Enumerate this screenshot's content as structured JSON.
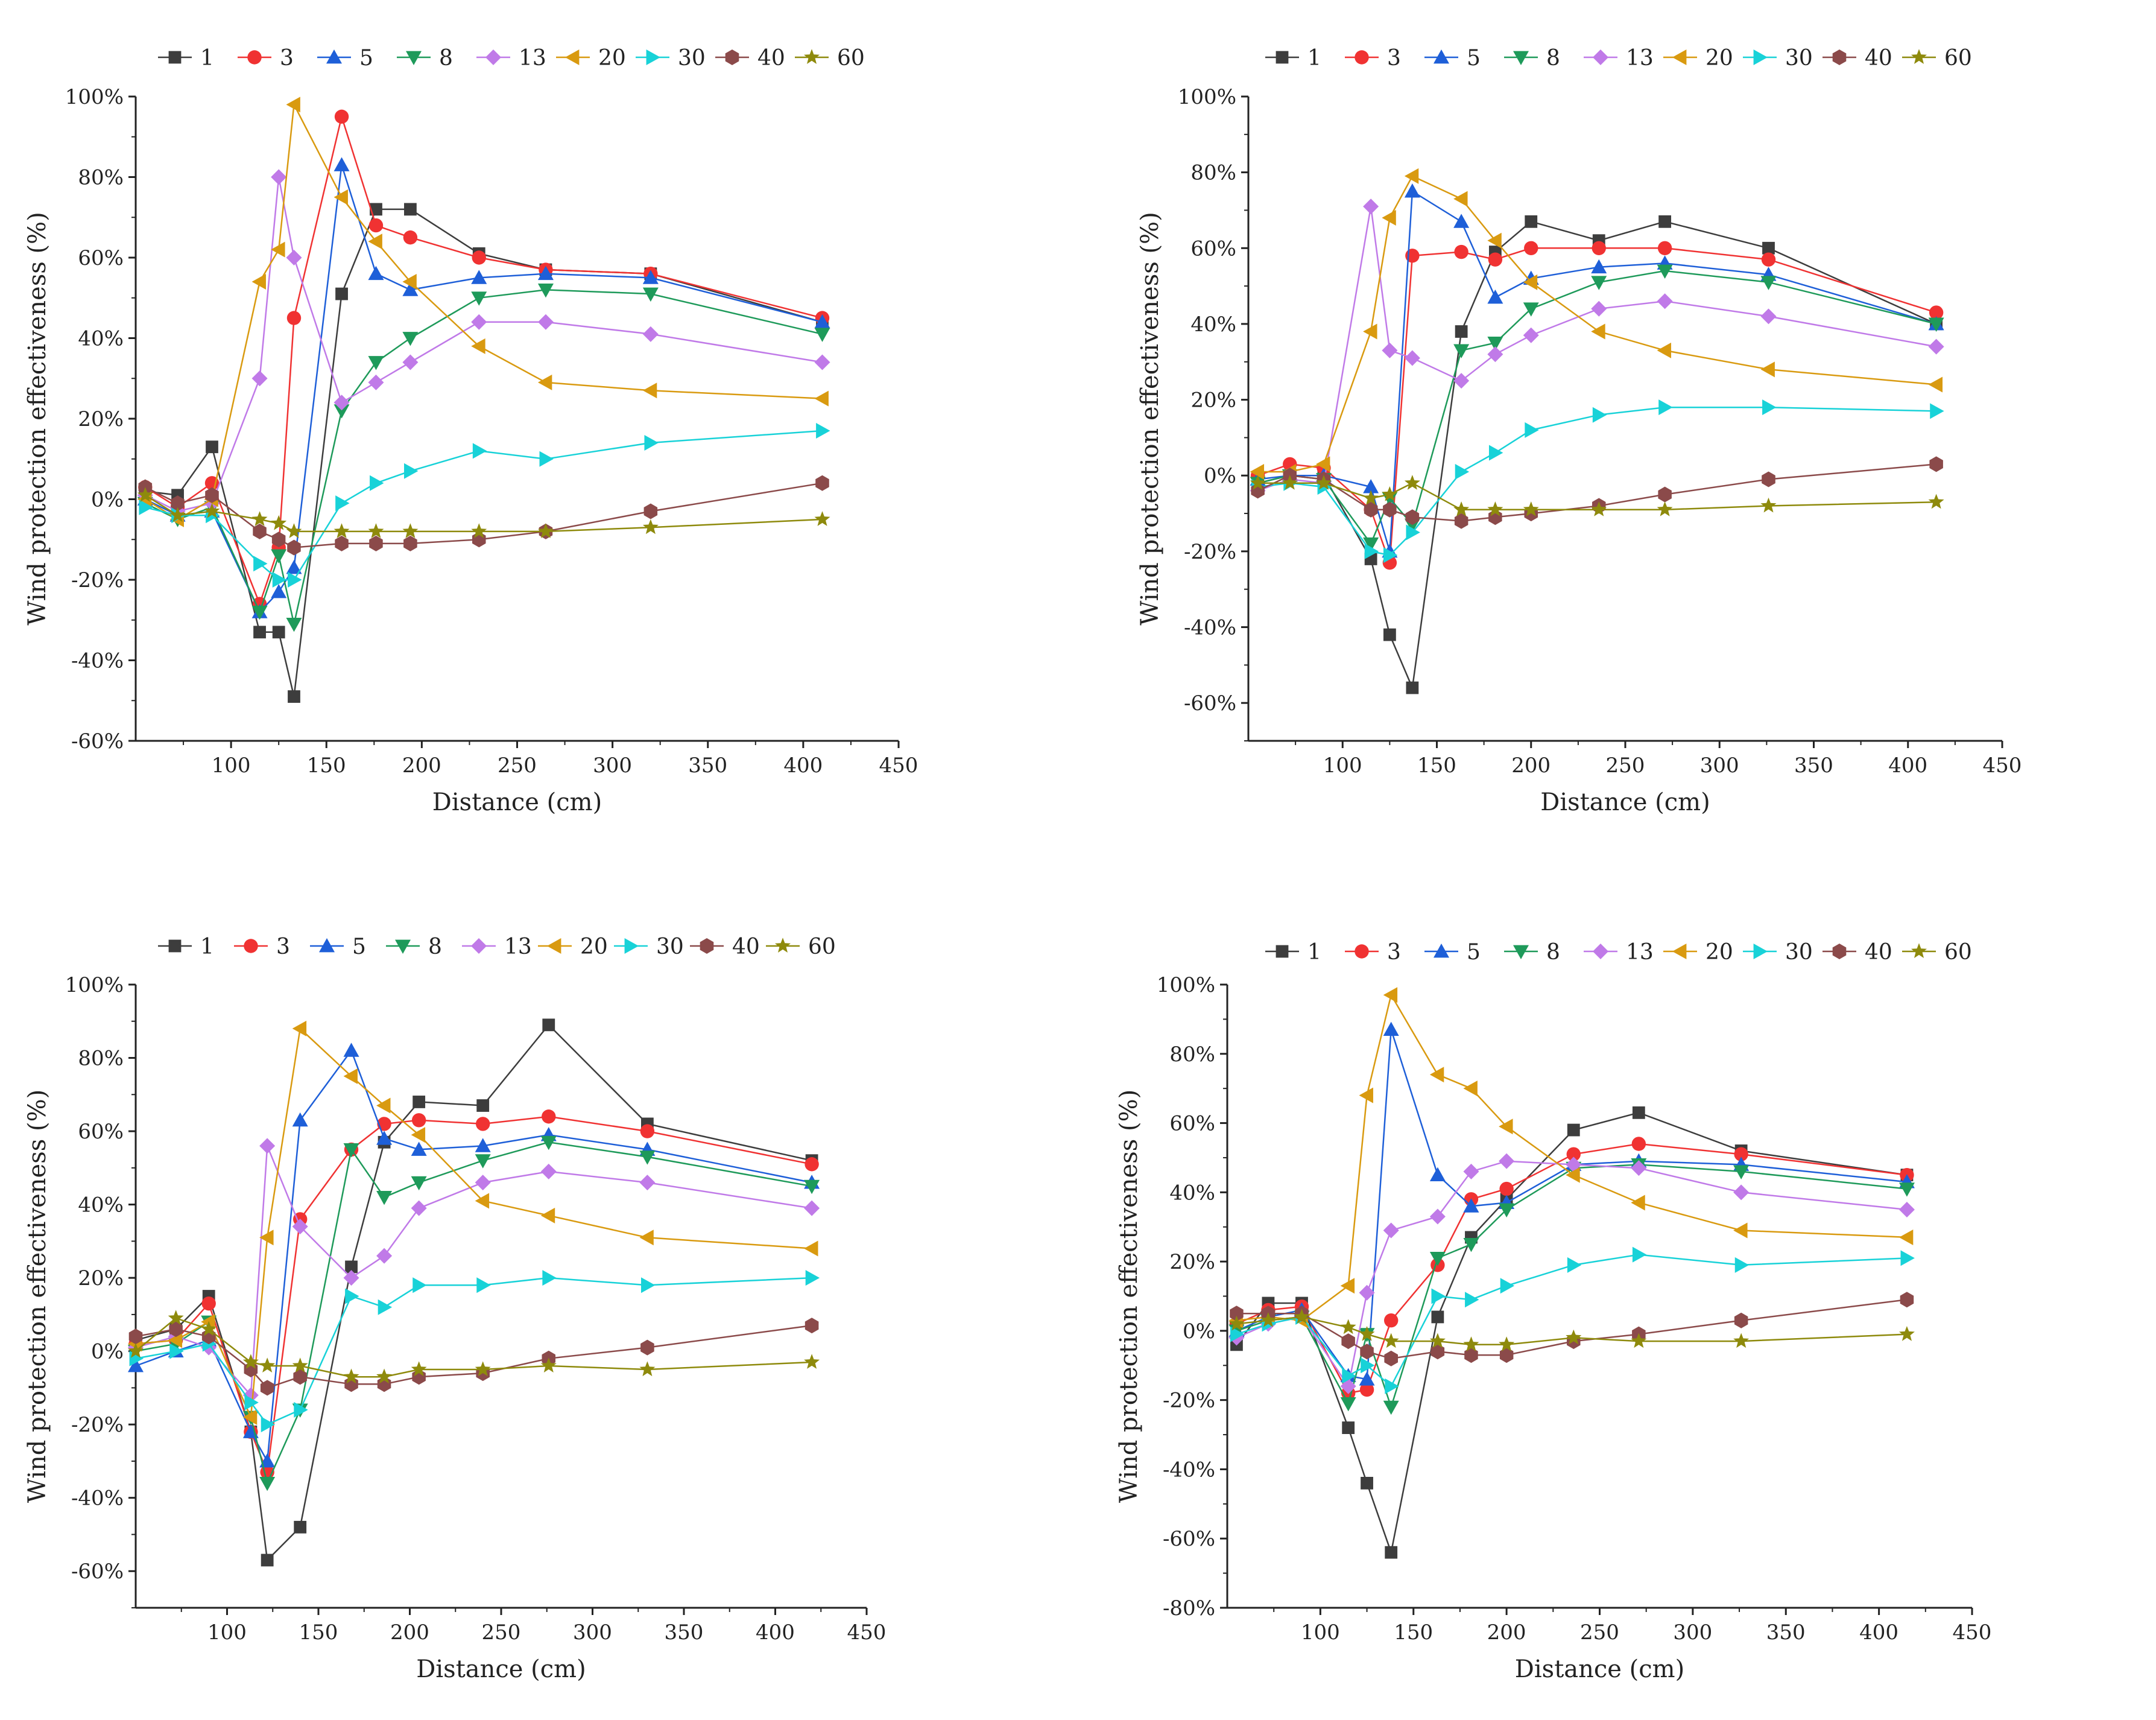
{
  "colors": {
    "1": "#3d3d3d",
    "3": "#f03232",
    "5": "#1e5fd8",
    "8": "#1e9a5a",
    "13": "#c07ae8",
    "20": "#d99a10",
    "30": "#18d2d8",
    "40": "#8b4a4a",
    "60": "#8e8a0c"
  },
  "chart_data": [
    {
      "type": "line",
      "xlabel": "Distance (cm)",
      "ylabel": "Wind protection effectiveness (%)",
      "xlim": [
        50,
        450
      ],
      "ylim": [
        -60,
        100
      ],
      "x_ticks": [
        "100",
        "150",
        "200",
        "250",
        "300",
        "350",
        "400",
        "450"
      ],
      "y_ticks": [
        "-60%",
        "-40%",
        "-20%",
        "0%",
        "20%",
        "40%",
        "60%",
        "80%",
        "100%"
      ],
      "x": [
        55,
        72,
        90,
        115,
        125,
        133,
        158,
        176,
        194,
        230,
        265,
        320,
        410
      ],
      "legend": "top",
      "series": [
        {
          "name": "1",
          "marker": "square",
          "values": [
            2,
            1,
            13,
            -33,
            -33,
            -49,
            51,
            72,
            72,
            61,
            57,
            56,
            44
          ]
        },
        {
          "name": "3",
          "marker": "circle",
          "values": [
            3,
            -2,
            4,
            -26,
            -12,
            45,
            95,
            68,
            65,
            60,
            57,
            56,
            45
          ]
        },
        {
          "name": "5",
          "marker": "triangle",
          "values": [
            0,
            -4,
            -3,
            -28,
            -23,
            -17,
            83,
            56,
            52,
            55,
            56,
            55,
            44
          ]
        },
        {
          "name": "8",
          "marker": "tri-down",
          "values": [
            -1,
            -5,
            -2,
            -28,
            -14,
            -31,
            22,
            34,
            40,
            50,
            52,
            51,
            41
          ]
        },
        {
          "name": "13",
          "marker": "diamond",
          "values": [
            1,
            -3,
            -1,
            30,
            80,
            60,
            24,
            29,
            34,
            44,
            44,
            41,
            34
          ]
        },
        {
          "name": "20",
          "marker": "tri-left",
          "values": [
            0,
            -5,
            0,
            54,
            62,
            98,
            75,
            64,
            54,
            38,
            29,
            27,
            25
          ]
        },
        {
          "name": "30",
          "marker": "tri-right",
          "values": [
            -2,
            -4,
            -4,
            -16,
            -20,
            -20,
            -1,
            4,
            7,
            12,
            10,
            14,
            17
          ]
        },
        {
          "name": "40",
          "marker": "hexagon",
          "values": [
            3,
            -1,
            1,
            -8,
            -10,
            -12,
            -11,
            -11,
            -11,
            -10,
            -8,
            -3,
            4
          ]
        },
        {
          "name": "60",
          "marker": "star",
          "values": [
            1,
            -4,
            -3,
            -5,
            -6,
            -8,
            -8,
            -8,
            -8,
            -8,
            -8,
            -7,
            -5
          ]
        }
      ]
    },
    {
      "type": "line",
      "xlabel": "Distance (cm)",
      "ylabel": "Wind protection effectiveness (%)",
      "xlim": [
        50,
        450
      ],
      "ylim": [
        -70,
        100
      ],
      "x_ticks": [
        "100",
        "150",
        "200",
        "250",
        "300",
        "350",
        "400",
        "450"
      ],
      "y_ticks": [
        "-60%",
        "-40%",
        "-20%",
        "0%",
        "20%",
        "40%",
        "60%",
        "80%",
        "100%"
      ],
      "x": [
        55,
        72,
        90,
        115,
        125,
        137,
        163,
        181,
        200,
        236,
        271,
        326,
        415
      ],
      "legend": "top",
      "series": [
        {
          "name": "1",
          "marker": "square",
          "values": [
            -2,
            0,
            0,
            -22,
            -42,
            -56,
            38,
            59,
            67,
            62,
            67,
            60,
            40
          ]
        },
        {
          "name": "3",
          "marker": "circle",
          "values": [
            0,
            3,
            2,
            -9,
            -23,
            58,
            59,
            57,
            60,
            60,
            60,
            57,
            43
          ]
        },
        {
          "name": "5",
          "marker": "triangle",
          "values": [
            -1,
            0,
            0,
            -3,
            -20,
            75,
            67,
            47,
            52,
            55,
            56,
            53,
            40
          ]
        },
        {
          "name": "8",
          "marker": "tri-down",
          "values": [
            -2,
            0,
            -1,
            -18,
            -6,
            -13,
            33,
            35,
            44,
            51,
            54,
            51,
            40
          ]
        },
        {
          "name": "13",
          "marker": "diamond",
          "values": [
            -4,
            -1,
            -2,
            71,
            33,
            31,
            25,
            32,
            37,
            44,
            46,
            42,
            34
          ]
        },
        {
          "name": "20",
          "marker": "tri-left",
          "values": [
            1,
            1,
            3,
            38,
            68,
            79,
            73,
            62,
            51,
            38,
            33,
            28,
            24
          ]
        },
        {
          "name": "30",
          "marker": "tri-right",
          "values": [
            -3,
            -2,
            -3,
            -20,
            -21,
            -15,
            1,
            6,
            12,
            16,
            18,
            18,
            17
          ]
        },
        {
          "name": "40",
          "marker": "hexagon",
          "values": [
            -4,
            0,
            -1,
            -9,
            -9,
            -11,
            -12,
            -11,
            -10,
            -8,
            -5,
            -1,
            3
          ]
        },
        {
          "name": "60",
          "marker": "star",
          "values": [
            -2,
            -2,
            -2,
            -6,
            -5,
            -2,
            -9,
            -9,
            -9,
            -9,
            -9,
            -8,
            -7
          ]
        }
      ]
    },
    {
      "type": "line",
      "xlabel": "Distance (cm)",
      "ylabel": "Wind protection effectiveness (%)",
      "xlim": [
        50,
        450
      ],
      "ylim": [
        -70,
        100
      ],
      "x_ticks": [
        "100",
        "150",
        "200",
        "250",
        "300",
        "350",
        "400",
        "450"
      ],
      "y_ticks": [
        "-60%",
        "-40%",
        "-20%",
        "0%",
        "20%",
        "40%",
        "60%",
        "80%",
        "100%"
      ],
      "x": [
        50,
        72,
        90,
        113,
        122,
        140,
        168,
        186,
        205,
        240,
        276,
        330,
        420
      ],
      "legend": "top",
      "series": [
        {
          "name": "1",
          "marker": "square",
          "values": [
            3,
            6,
            15,
            -22,
            -57,
            -48,
            23,
            57,
            68,
            67,
            89,
            62,
            52
          ]
        },
        {
          "name": "3",
          "marker": "circle",
          "values": [
            2,
            3,
            13,
            -22,
            -33,
            36,
            55,
            62,
            63,
            62,
            64,
            60,
            51
          ]
        },
        {
          "name": "5",
          "marker": "triangle",
          "values": [
            -4,
            0,
            3,
            -22,
            -30,
            63,
            82,
            58,
            55,
            56,
            59,
            55,
            46
          ]
        },
        {
          "name": "8",
          "marker": "tri-down",
          "values": [
            0,
            2,
            8,
            -18,
            -36,
            -16,
            55,
            42,
            46,
            52,
            57,
            53,
            45
          ]
        },
        {
          "name": "13",
          "marker": "diamond",
          "values": [
            1,
            4,
            1,
            -12,
            56,
            34,
            20,
            26,
            39,
            46,
            49,
            46,
            39
          ]
        },
        {
          "name": "20",
          "marker": "tri-left",
          "values": [
            2,
            3,
            8,
            -18,
            31,
            88,
            75,
            67,
            59,
            41,
            37,
            31,
            28
          ]
        },
        {
          "name": "30",
          "marker": "tri-right",
          "values": [
            -2,
            0,
            2,
            -14,
            -20,
            -16,
            15,
            12,
            18,
            18,
            20,
            18,
            20
          ]
        },
        {
          "name": "40",
          "marker": "hexagon",
          "values": [
            4,
            6,
            4,
            -5,
            -10,
            -7,
            -9,
            -9,
            -7,
            -6,
            -2,
            1,
            7
          ]
        },
        {
          "name": "60",
          "marker": "star",
          "values": [
            0,
            9,
            6,
            -3,
            -4,
            -4,
            -7,
            -7,
            -5,
            -5,
            -4,
            -5,
            -3
          ]
        }
      ]
    },
    {
      "type": "line",
      "xlabel": "Distance (cm)",
      "ylabel": "Wind protection effectiveness (%)",
      "xlim": [
        50,
        450
      ],
      "ylim": [
        -80,
        100
      ],
      "x_ticks": [
        "100",
        "150",
        "200",
        "250",
        "300",
        "350",
        "400",
        "450"
      ],
      "y_ticks": [
        "-80%",
        "-60%",
        "-40%",
        "-20%",
        "0%",
        "20%",
        "40%",
        "60%",
        "80%",
        "100%"
      ],
      "x": [
        55,
        72,
        90,
        115,
        125,
        138,
        163,
        181,
        200,
        236,
        271,
        326,
        415
      ],
      "legend": "top",
      "series": [
        {
          "name": "1",
          "marker": "square",
          "values": [
            -4,
            8,
            8,
            -28,
            -44,
            -64,
            4,
            27,
            38,
            58,
            63,
            52,
            45
          ]
        },
        {
          "name": "3",
          "marker": "circle",
          "values": [
            2,
            6,
            7,
            -18,
            -17,
            3,
            19,
            38,
            41,
            51,
            54,
            51,
            45
          ]
        },
        {
          "name": "5",
          "marker": "triangle",
          "values": [
            0,
            4,
            6,
            -13,
            -14,
            87,
            45,
            36,
            37,
            48,
            49,
            48,
            43
          ]
        },
        {
          "name": "8",
          "marker": "tri-down",
          "values": [
            0,
            3,
            4,
            -21,
            -1,
            -22,
            21,
            25,
            35,
            47,
            48,
            46,
            41
          ]
        },
        {
          "name": "13",
          "marker": "diamond",
          "values": [
            -2,
            2,
            4,
            -16,
            11,
            29,
            33,
            46,
            49,
            48,
            47,
            40,
            35
          ]
        },
        {
          "name": "20",
          "marker": "tri-left",
          "values": [
            3,
            4,
            3,
            13,
            68,
            97,
            74,
            70,
            59,
            45,
            37,
            29,
            27
          ]
        },
        {
          "name": "30",
          "marker": "tri-right",
          "values": [
            -1,
            2,
            4,
            -13,
            -10,
            -16,
            10,
            9,
            13,
            19,
            22,
            19,
            21
          ]
        },
        {
          "name": "40",
          "marker": "hexagon",
          "values": [
            5,
            5,
            5,
            -3,
            -6,
            -8,
            -6,
            -7,
            -7,
            -3,
            -1,
            3,
            9
          ]
        },
        {
          "name": "60",
          "marker": "star",
          "values": [
            2,
            3,
            4,
            1,
            -1,
            -3,
            -3,
            -4,
            -4,
            -2,
            -3,
            -3,
            -1
          ]
        }
      ]
    }
  ]
}
